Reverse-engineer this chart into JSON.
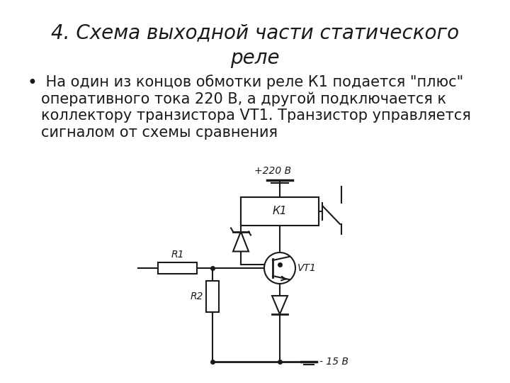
{
  "title_line1": "4. Схема выходной части статического реле",
  "title_line2": "реле",
  "bullet": "•",
  "bullet_text_line1": " На один из концов обмотки реле К1 подается \"плюс\"",
  "bullet_text_line2": "оперативного тока 220 В, а другой подключается к",
  "bullet_text_line3": "коллектору транзистора VT1. Транзистор управляется",
  "bullet_text_line4": "сигналом от схемы сравнения",
  "label_plus220": "+220 В",
  "label_minus15": "- 15 В",
  "label_R1": "R1",
  "label_R2": "R2",
  "label_K1": "К1",
  "label_VT1": "VT1",
  "bg_color": "#ffffff",
  "line_color": "#1a1a1a",
  "title_fontsize": 20,
  "body_fontsize": 15
}
